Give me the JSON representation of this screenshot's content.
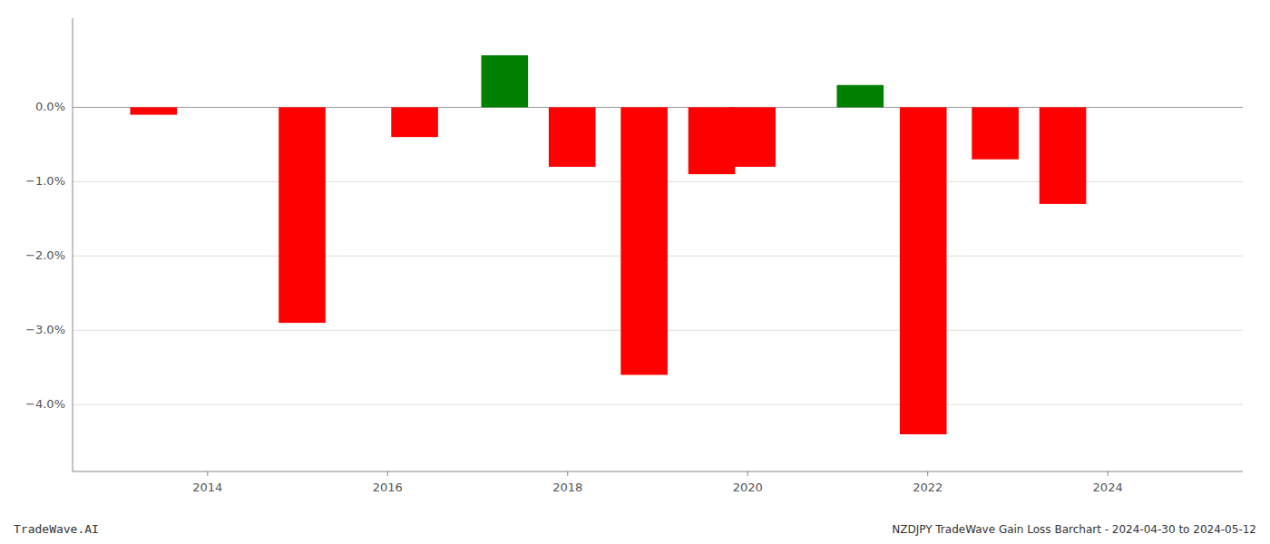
{
  "chart_data": {
    "type": "bar",
    "title": "NZDJPY TradeWave Gain Loss Barchart - 2024-04-30 to 2024-05-12",
    "annotations": [
      "TradeWave.AI"
    ],
    "x": [
      2013.4,
      2015.05,
      2016.3,
      2017.3,
      2018.05,
      2018.85,
      2019.6,
      2020.05,
      2021.25,
      2021.95,
      2022.75,
      2023.5
    ],
    "values": [
      -0.001,
      -0.029,
      -0.004,
      0.007,
      -0.008,
      -0.036,
      -0.009,
      -0.008,
      0.003,
      -0.044,
      -0.007,
      -0.013
    ],
    "colors": [
      "#ff0000",
      "#ff0000",
      "#ff0000",
      "#008000",
      "#ff0000",
      "#ff0000",
      "#ff0000",
      "#ff0000",
      "#008000",
      "#ff0000",
      "#ff0000",
      "#ff0000"
    ],
    "xlim": [
      2012.5,
      2025.5
    ],
    "xticks": [
      2014,
      2016,
      2018,
      2020,
      2022,
      2024
    ],
    "ylim": [
      -0.049,
      0.012
    ],
    "yticks": [
      {
        "value": -0.04,
        "label": "−4.0%"
      },
      {
        "value": -0.03,
        "label": "−3.0%"
      },
      {
        "value": -0.02,
        "label": "−2.0%"
      },
      {
        "value": -0.01,
        "label": "−1.0%"
      },
      {
        "value": 0.0,
        "label": "0.0%"
      }
    ],
    "grid": true
  }
}
